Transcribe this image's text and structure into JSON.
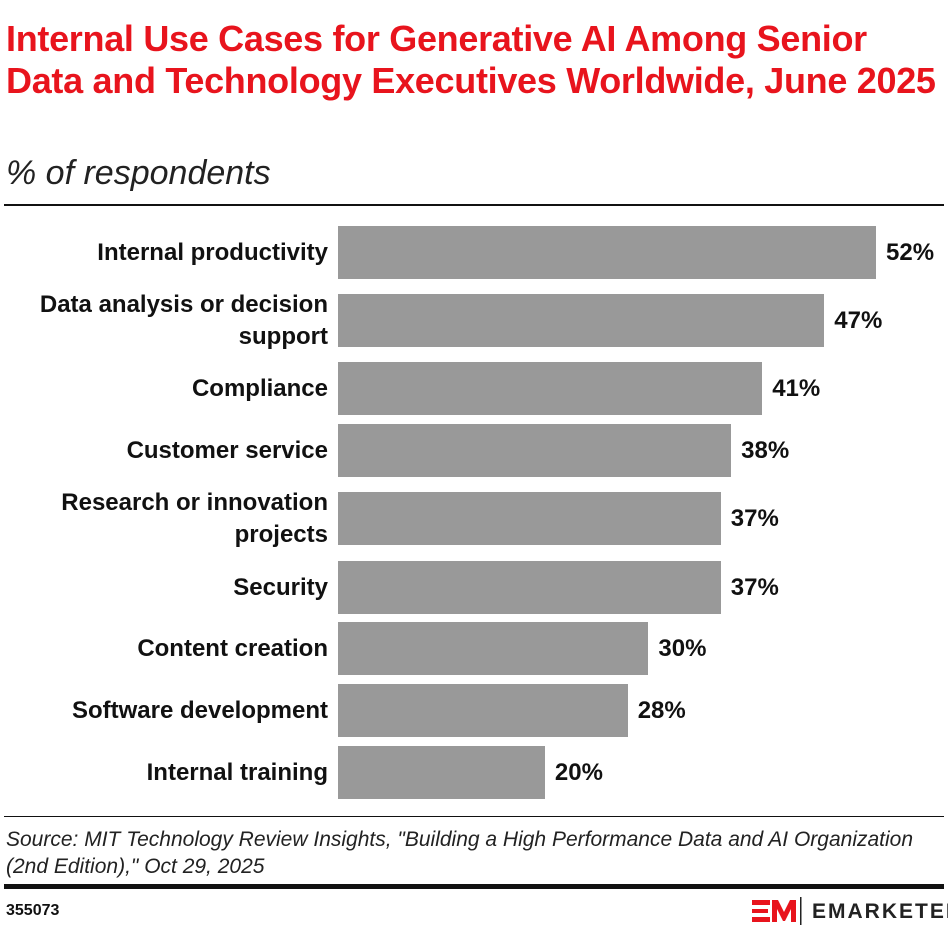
{
  "chart_data": {
    "type": "bar",
    "orientation": "horizontal",
    "title": "Internal Use Cases for Generative AI Among Senior Data and Technology Executives Worldwide, June 2025",
    "subtitle": "% of respondents",
    "categories": [
      "Internal productivity",
      "Data analysis or decision support",
      "Compliance",
      "Customer service",
      "Research or innovation projects",
      "Security",
      "Content creation",
      "Software development",
      "Internal training"
    ],
    "values": [
      52,
      47,
      41,
      38,
      37,
      37,
      30,
      28,
      20
    ],
    "value_labels": [
      "52%",
      "47%",
      "41%",
      "38%",
      "37%",
      "37%",
      "30%",
      "28%",
      "20%"
    ],
    "unit": "%",
    "xlim": [
      0,
      52
    ],
    "grid": false,
    "bar_color": "#999999"
  },
  "colors": {
    "title": "#e8141d",
    "logo": "#e8141d"
  },
  "footer": {
    "source": "Source: MIT Technology Review Insights, \"Building a High Performance Data and AI Organization (2nd Edition),\" Oct 29, 2025",
    "chart_id": "355073",
    "brand": "EMARKETER"
  }
}
